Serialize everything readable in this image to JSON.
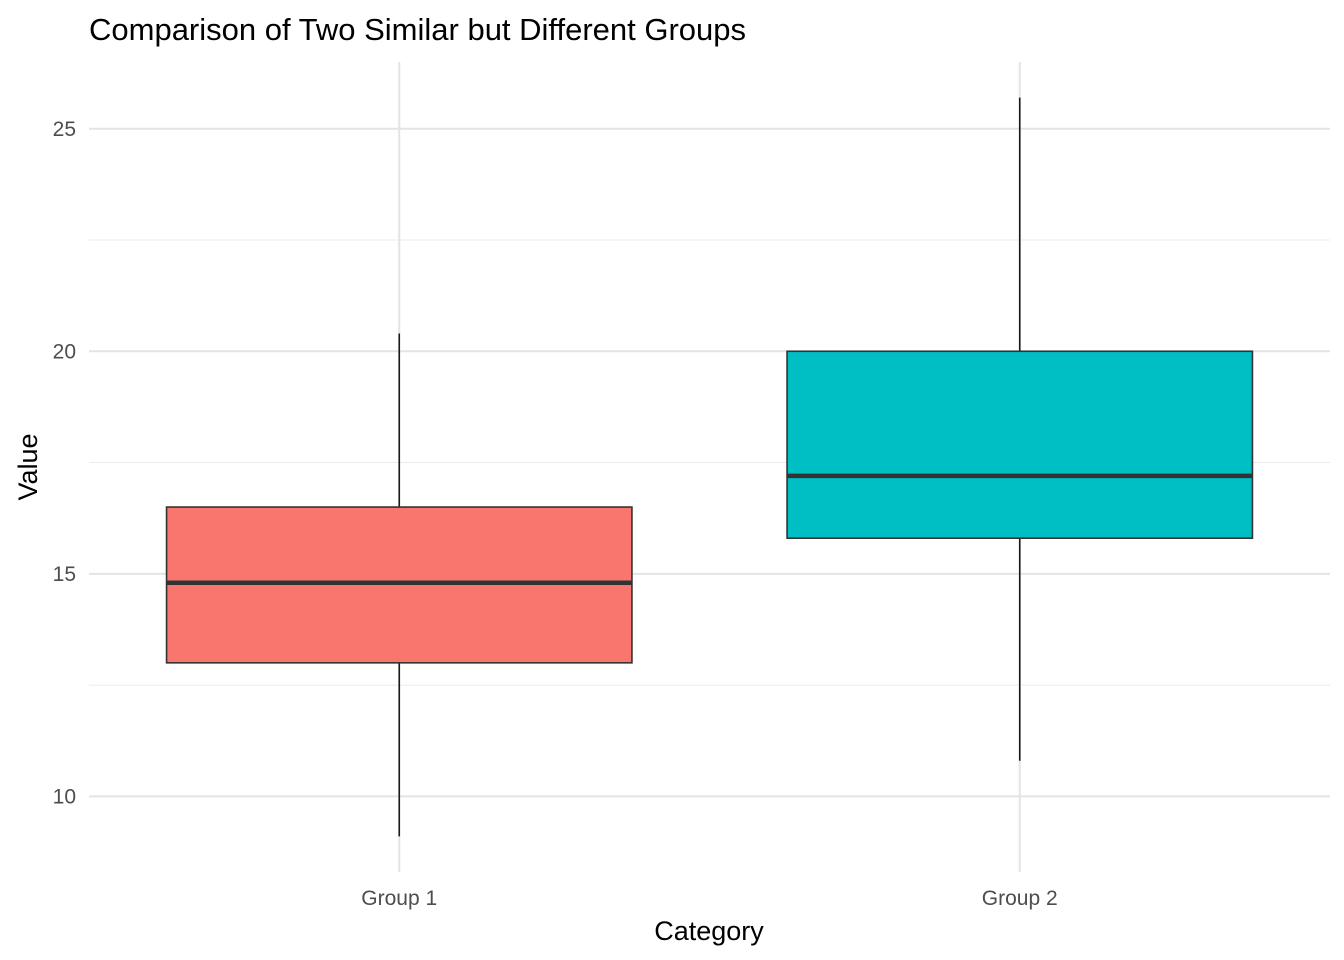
{
  "chart_data": {
    "type": "boxplot",
    "title": "Comparison of Two Similar but Different Groups",
    "xlabel": "Category",
    "ylabel": "Value",
    "categories": [
      "Group 1",
      "Group 2"
    ],
    "boxes": [
      {
        "category": "Group 1",
        "whisker_low": 9.1,
        "q1": 13.0,
        "median": 14.8,
        "q3": 16.5,
        "whisker_high": 20.4,
        "color": "#F8766D"
      },
      {
        "category": "Group 2",
        "whisker_low": 10.8,
        "q1": 15.8,
        "median": 17.2,
        "q3": 20.0,
        "whisker_high": 25.7,
        "color": "#00BFC4"
      }
    ],
    "ylim": [
      8.3,
      26.5
    ],
    "y_ticks": [
      10,
      15,
      20,
      25
    ],
    "grid": true,
    "legend": "none"
  }
}
